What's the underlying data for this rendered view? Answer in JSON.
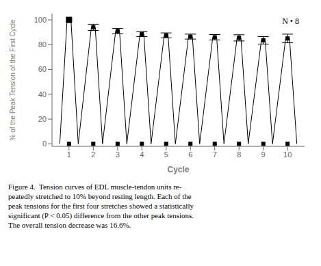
{
  "chart_data": {
    "type": "line",
    "xlabel": "Cycle",
    "ylabel": "% of the Peak Tension of the First Cycle",
    "x": [
      1,
      2,
      3,
      4,
      5,
      6,
      7,
      8,
      9,
      10
    ],
    "values": [
      100,
      94,
      91,
      88.5,
      87.5,
      86.5,
      86,
      85.5,
      83.5,
      85
    ],
    "error": [
      0,
      2.5,
      2.2,
      2.0,
      2.0,
      2.0,
      2.2,
      2.5,
      3.0,
      3.5
    ],
    "base": 0,
    "xlim": [
      0.3,
      10.7
    ],
    "ylim": [
      -2,
      105
    ],
    "xticks": [
      1,
      2,
      3,
      4,
      5,
      6,
      7,
      8,
      9,
      10
    ],
    "yticks": [
      0,
      20,
      40,
      60,
      80,
      100
    ],
    "color": "black",
    "marker": "square",
    "annotations": [
      "N • 8"
    ],
    "caption": "Figure 4.  Tension curves of EDL muscle-tendon units re-\npeatedly stretched to 10% beyond resting length. Each of the\npeak tensions for the first four stretches showed a statistically\nsignificant (P < 0.05) difference from the other peak tensions.\nThe overall tension decrease was 16.6%."
  }
}
